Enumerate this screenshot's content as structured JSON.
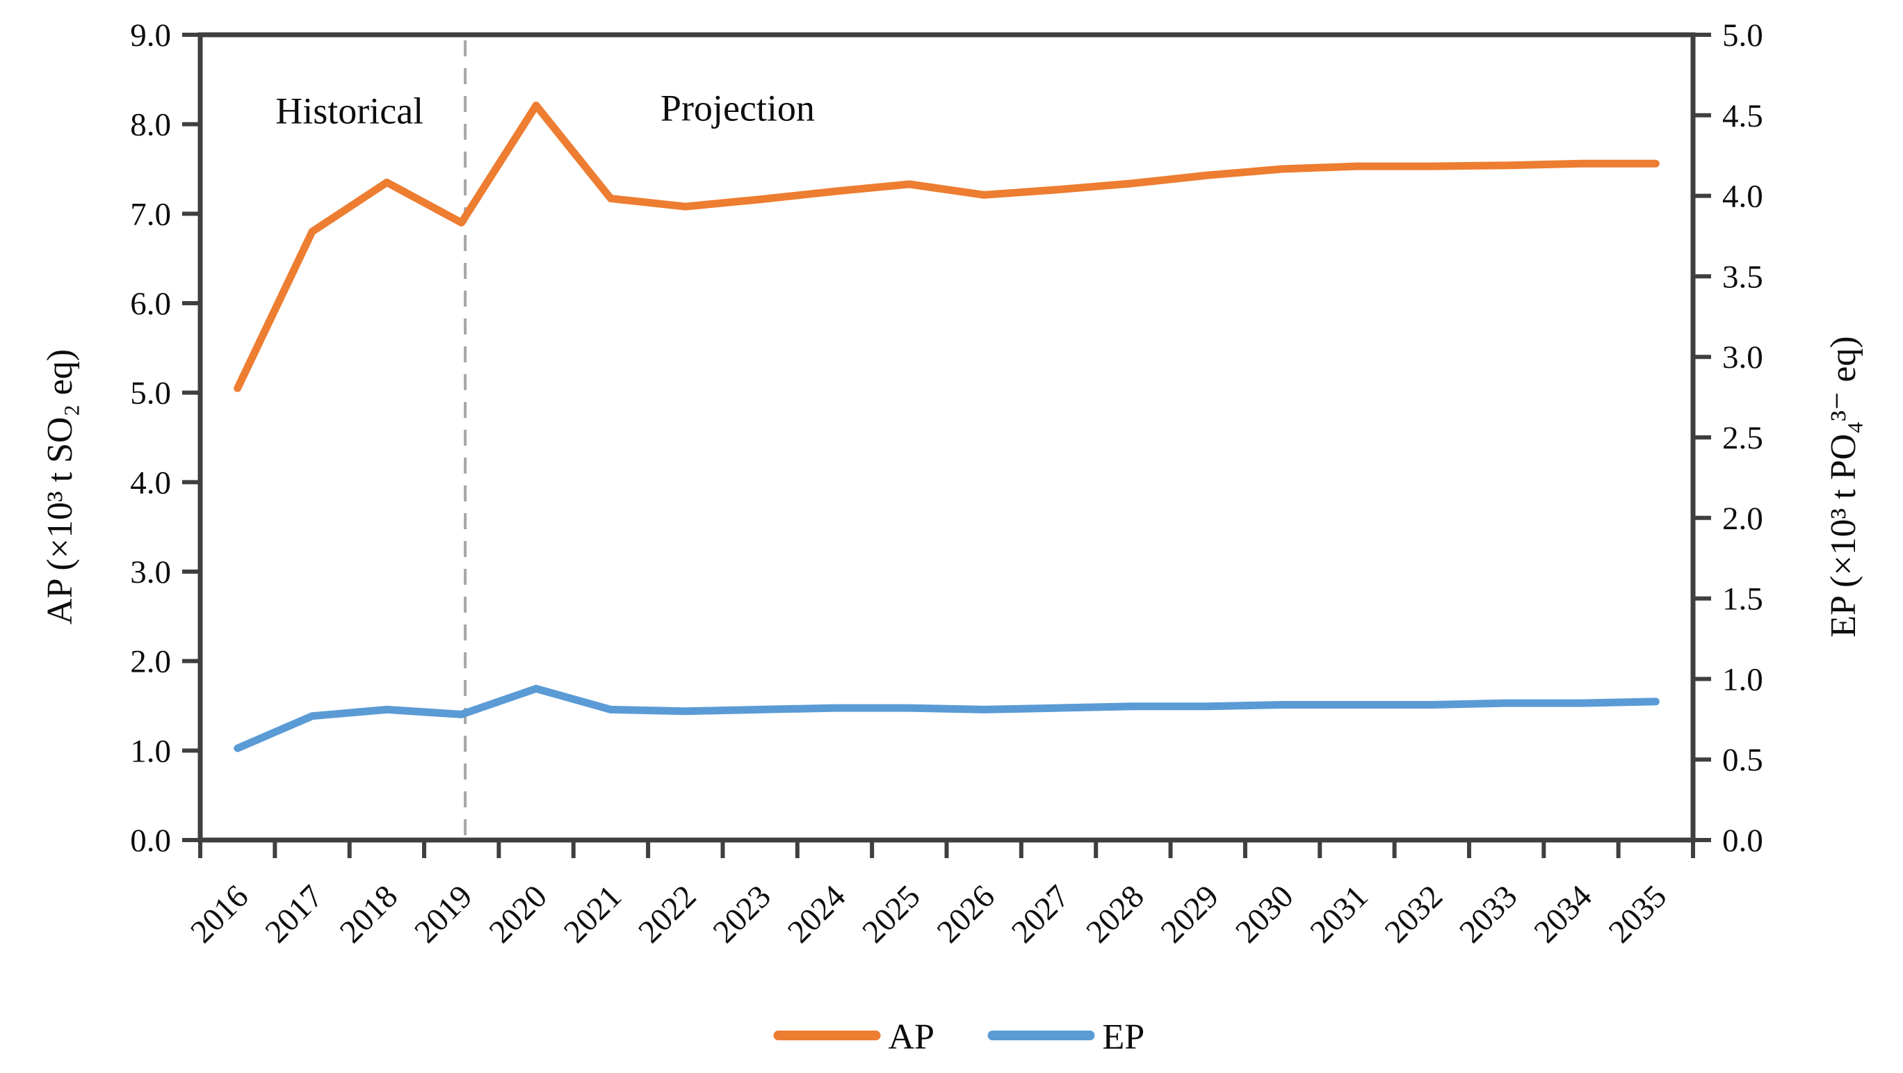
{
  "chart_data": {
    "type": "line",
    "title": "",
    "x": [
      "2016",
      "2017",
      "2018",
      "2019",
      "2020",
      "2021",
      "2022",
      "2023",
      "2024",
      "2025",
      "2026",
      "2027",
      "2028",
      "2029",
      "2030",
      "2031",
      "2032",
      "2033",
      "2034",
      "2035"
    ],
    "series": [
      {
        "name": "AP",
        "axis": "left",
        "color": "#ED7D31",
        "values": [
          5.05,
          6.8,
          7.35,
          6.9,
          8.21,
          7.17,
          7.08,
          7.16,
          7.25,
          7.33,
          7.21,
          7.27,
          7.34,
          7.43,
          7.5,
          7.53,
          7.53,
          7.54,
          7.56,
          7.56
        ]
      },
      {
        "name": "EP",
        "axis": "right",
        "color": "#5B9BD5",
        "values": [
          0.57,
          0.77,
          0.81,
          0.78,
          0.94,
          0.81,
          0.8,
          0.81,
          0.82,
          0.82,
          0.81,
          0.82,
          0.83,
          0.83,
          0.84,
          0.84,
          0.84,
          0.85,
          0.85,
          0.86
        ]
      }
    ],
    "left_axis": {
      "label": "AP (×10³ t SO₂ eq)",
      "min": 0,
      "max": 9,
      "step": 1,
      "tick_labels": [
        "0.0",
        "1.0",
        "2.0",
        "3.0",
        "4.0",
        "5.0",
        "6.0",
        "7.0",
        "8.0",
        "9.0"
      ]
    },
    "right_axis": {
      "label": "EP (×10³ t PO₄³⁻ eq)",
      "min": 0,
      "max": 5,
      "step": 0.5,
      "tick_labels": [
        "0.0",
        "0.5",
        "1.0",
        "1.5",
        "2.0",
        "2.5",
        "3.0",
        "3.5",
        "4.0",
        "4.5",
        "5.0"
      ]
    },
    "divider": {
      "x_year": 2019.05,
      "style": "dashed",
      "color": "#a6a6a6"
    },
    "annotations": [
      {
        "text": "Historical",
        "year_center": 2017.5,
        "y_left_value": 8.15
      },
      {
        "text": "Projection",
        "year_center": 2022.7,
        "y_left_value": 8.18
      }
    ],
    "legend": {
      "position": "bottom-center",
      "items": [
        {
          "label": "AP",
          "color": "#ED7D31"
        },
        {
          "label": "EP",
          "color": "#5B9BD5"
        }
      ]
    },
    "grid": false,
    "plot_border_color": "#3f3f3f"
  }
}
